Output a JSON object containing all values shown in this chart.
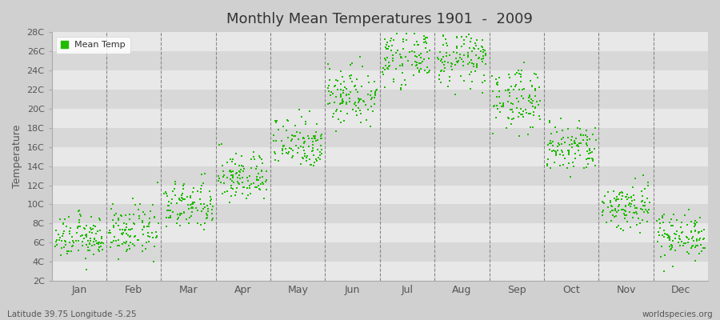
{
  "title": "Monthly Mean Temperatures 1901  -  2009",
  "ylabel": "Temperature",
  "footer_left": "Latitude 39.75 Longitude -5.25",
  "footer_right": "worldspecies.org",
  "legend_label": "Mean Temp",
  "dot_color": "#22bb00",
  "bg_color": "#d0d0d0",
  "band_light": "#e8e8e8",
  "band_dark": "#d8d8d8",
  "ylim": [
    2,
    28
  ],
  "yticks": [
    2,
    4,
    6,
    8,
    10,
    12,
    14,
    16,
    18,
    20,
    22,
    24,
    26,
    28
  ],
  "ytick_labels": [
    "2C",
    "4C",
    "6C",
    "8C",
    "10C",
    "12C",
    "14C",
    "16C",
    "18C",
    "20C",
    "22C",
    "24C",
    "26C",
    "28C"
  ],
  "months": [
    "Jan",
    "Feb",
    "Mar",
    "Apr",
    "May",
    "Jun",
    "Jul",
    "Aug",
    "Sep",
    "Oct",
    "Nov",
    "Dec"
  ],
  "xlim": [
    0,
    12
  ],
  "n_years": 109,
  "mean_temps": [
    6.5,
    7.2,
    9.8,
    12.8,
    16.5,
    21.5,
    25.5,
    25.2,
    21.0,
    15.8,
    9.8,
    6.8
  ],
  "std_temps": [
    1.1,
    1.3,
    1.3,
    1.3,
    1.4,
    1.6,
    1.4,
    1.4,
    1.6,
    1.4,
    1.3,
    1.2
  ]
}
